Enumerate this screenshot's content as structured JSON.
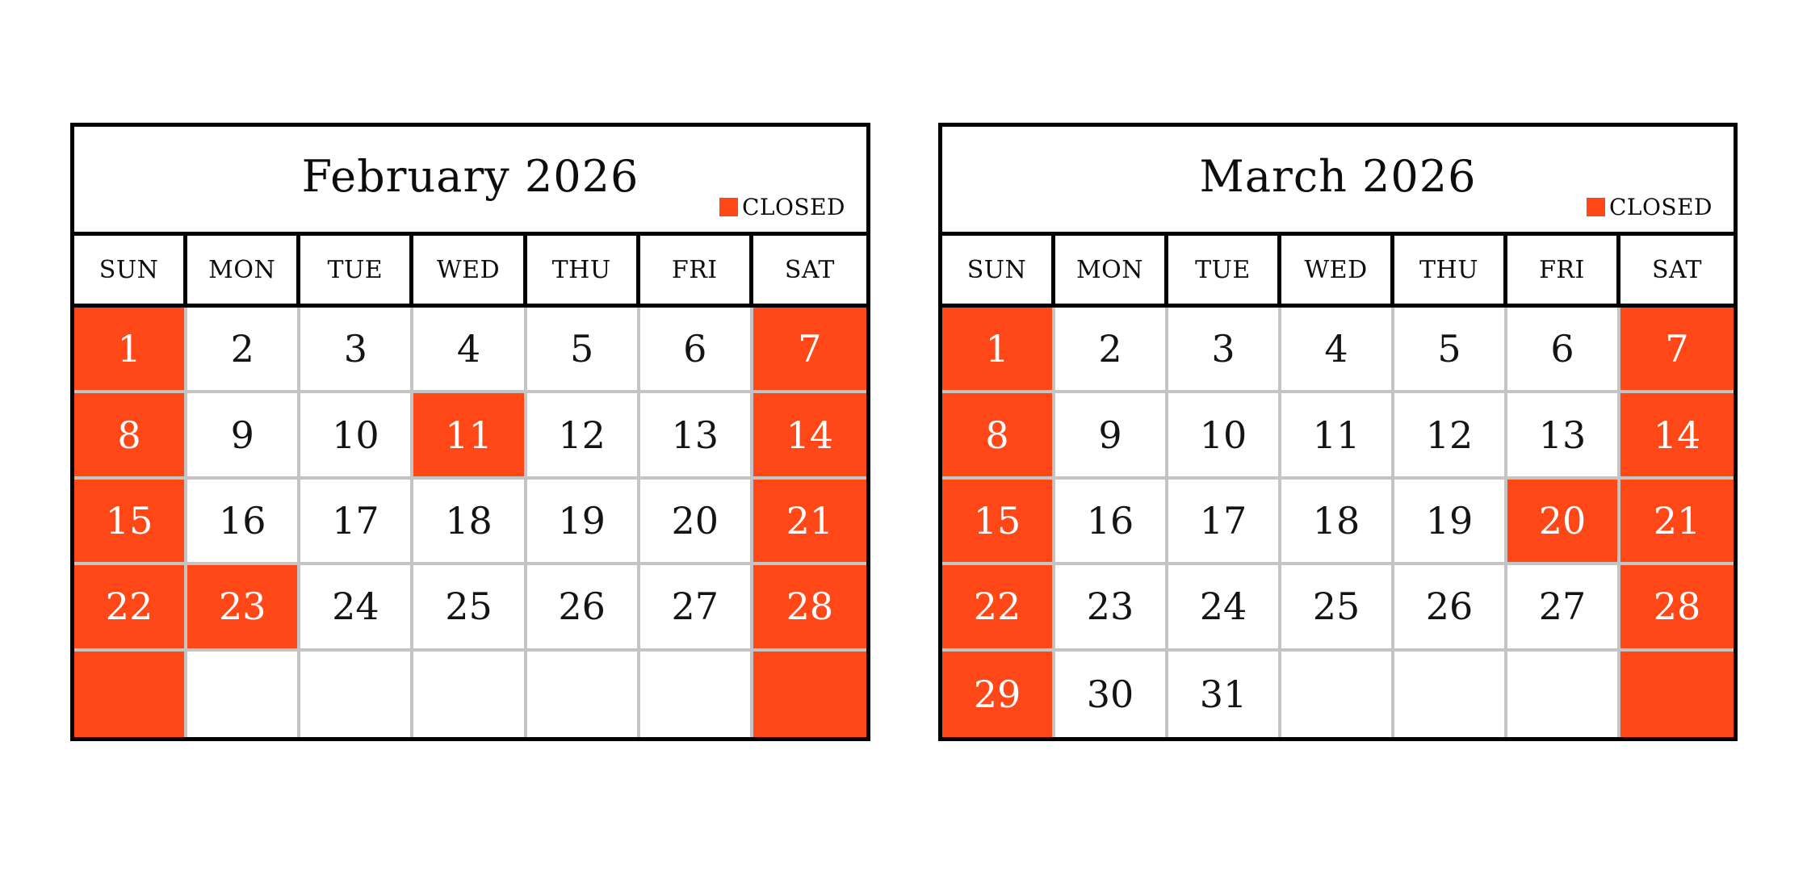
{
  "colors": {
    "closed": "#ff4718",
    "grid_line": "#c4c4c4",
    "outer_border": "#000000",
    "text": "#141414",
    "closed_text": "#ffffff",
    "background": "#ffffff"
  },
  "legend": {
    "label": "CLOSED"
  },
  "weekdays": [
    "SUN",
    "MON",
    "TUE",
    "WED",
    "THU",
    "FRI",
    "SAT"
  ],
  "calendars": [
    {
      "id": "february-2026",
      "title": "February 2026",
      "weeks": [
        [
          {
            "day": "1",
            "closed": true
          },
          {
            "day": "2",
            "closed": false
          },
          {
            "day": "3",
            "closed": false
          },
          {
            "day": "4",
            "closed": false
          },
          {
            "day": "5",
            "closed": false
          },
          {
            "day": "6",
            "closed": false
          },
          {
            "day": "7",
            "closed": true
          }
        ],
        [
          {
            "day": "8",
            "closed": true
          },
          {
            "day": "9",
            "closed": false
          },
          {
            "day": "10",
            "closed": false
          },
          {
            "day": "11",
            "closed": true
          },
          {
            "day": "12",
            "closed": false
          },
          {
            "day": "13",
            "closed": false
          },
          {
            "day": "14",
            "closed": true
          }
        ],
        [
          {
            "day": "15",
            "closed": true
          },
          {
            "day": "16",
            "closed": false
          },
          {
            "day": "17",
            "closed": false
          },
          {
            "day": "18",
            "closed": false
          },
          {
            "day": "19",
            "closed": false
          },
          {
            "day": "20",
            "closed": false
          },
          {
            "day": "21",
            "closed": true
          }
        ],
        [
          {
            "day": "22",
            "closed": true
          },
          {
            "day": "23",
            "closed": true
          },
          {
            "day": "24",
            "closed": false
          },
          {
            "day": "25",
            "closed": false
          },
          {
            "day": "26",
            "closed": false
          },
          {
            "day": "27",
            "closed": false
          },
          {
            "day": "28",
            "closed": true
          }
        ],
        [
          {
            "day": "",
            "closed": true
          },
          {
            "day": "",
            "closed": false
          },
          {
            "day": "",
            "closed": false
          },
          {
            "day": "",
            "closed": false
          },
          {
            "day": "",
            "closed": false
          },
          {
            "day": "",
            "closed": false
          },
          {
            "day": "",
            "closed": true
          }
        ]
      ]
    },
    {
      "id": "march-2026",
      "title": "March 2026",
      "weeks": [
        [
          {
            "day": "1",
            "closed": true
          },
          {
            "day": "2",
            "closed": false
          },
          {
            "day": "3",
            "closed": false
          },
          {
            "day": "4",
            "closed": false
          },
          {
            "day": "5",
            "closed": false
          },
          {
            "day": "6",
            "closed": false
          },
          {
            "day": "7",
            "closed": true
          }
        ],
        [
          {
            "day": "8",
            "closed": true
          },
          {
            "day": "9",
            "closed": false
          },
          {
            "day": "10",
            "closed": false
          },
          {
            "day": "11",
            "closed": false
          },
          {
            "day": "12",
            "closed": false
          },
          {
            "day": "13",
            "closed": false
          },
          {
            "day": "14",
            "closed": true
          }
        ],
        [
          {
            "day": "15",
            "closed": true
          },
          {
            "day": "16",
            "closed": false
          },
          {
            "day": "17",
            "closed": false
          },
          {
            "day": "18",
            "closed": false
          },
          {
            "day": "19",
            "closed": false
          },
          {
            "day": "20",
            "closed": true
          },
          {
            "day": "21",
            "closed": true
          }
        ],
        [
          {
            "day": "22",
            "closed": true
          },
          {
            "day": "23",
            "closed": false
          },
          {
            "day": "24",
            "closed": false
          },
          {
            "day": "25",
            "closed": false
          },
          {
            "day": "26",
            "closed": false
          },
          {
            "day": "27",
            "closed": false
          },
          {
            "day": "28",
            "closed": true
          }
        ],
        [
          {
            "day": "29",
            "closed": true
          },
          {
            "day": "30",
            "closed": false
          },
          {
            "day": "31",
            "closed": false
          },
          {
            "day": "",
            "closed": false
          },
          {
            "day": "",
            "closed": false
          },
          {
            "day": "",
            "closed": false
          },
          {
            "day": "",
            "closed": true
          }
        ]
      ]
    }
  ]
}
